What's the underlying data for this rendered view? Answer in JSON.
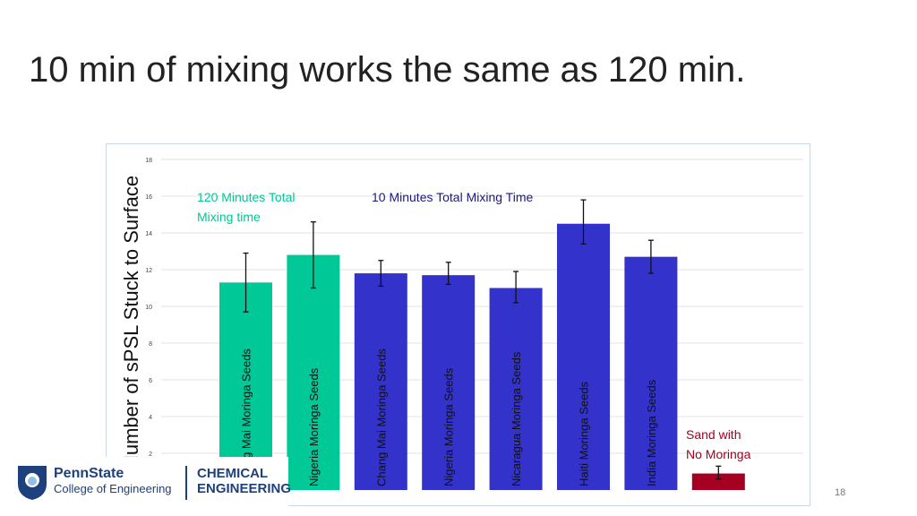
{
  "slide": {
    "title": "10 min of mixing works the same as 120 min.",
    "page_number": "18"
  },
  "logo": {
    "name": "PennState",
    "sub": "College of Engineering",
    "dept1": "CHEMICAL",
    "dept2": "ENGINEERING"
  },
  "chart_data": {
    "type": "bar",
    "ylabel": "Number of sPSL Stuck to Surface",
    "ylim": [
      0,
      18
    ],
    "yticks": [
      "2",
      "4",
      "6",
      "8",
      "10",
      "12",
      "14",
      "16",
      "18"
    ],
    "grid": true,
    "categories": [
      "Chang Mai Moringa Seeds",
      "Nigeria Moringa Seeds",
      "Chang Mai Moringa Seeds",
      "Nigeria Moringa Seeds",
      "Nicaragua Moringa Seeds",
      "Haiti Moringa Seeds",
      "India Moringa Seeds",
      "Sand with No Moringa"
    ],
    "values": [
      11.3,
      12.8,
      11.8,
      11.7,
      11.0,
      14.5,
      12.7,
      0.9
    ],
    "error_low": [
      9.7,
      11.0,
      11.1,
      11.2,
      10.2,
      13.4,
      11.8,
      0.6
    ],
    "error_high": [
      12.9,
      14.6,
      12.5,
      12.4,
      11.9,
      15.8,
      13.6,
      1.3
    ],
    "groups": [
      "120min",
      "120min",
      "10min",
      "10min",
      "10min",
      "10min",
      "10min",
      "control"
    ],
    "colors": {
      "120min": "#00c896",
      "10min": "#3333cc",
      "control": "#a50021"
    },
    "annotations": {
      "g120_line1": "120 Minutes Total",
      "g120_line2": "Mixing time",
      "g10": "10 Minutes Total Mixing Time",
      "ctrl_line1": "Sand with",
      "ctrl_line2": "No Moringa"
    }
  }
}
